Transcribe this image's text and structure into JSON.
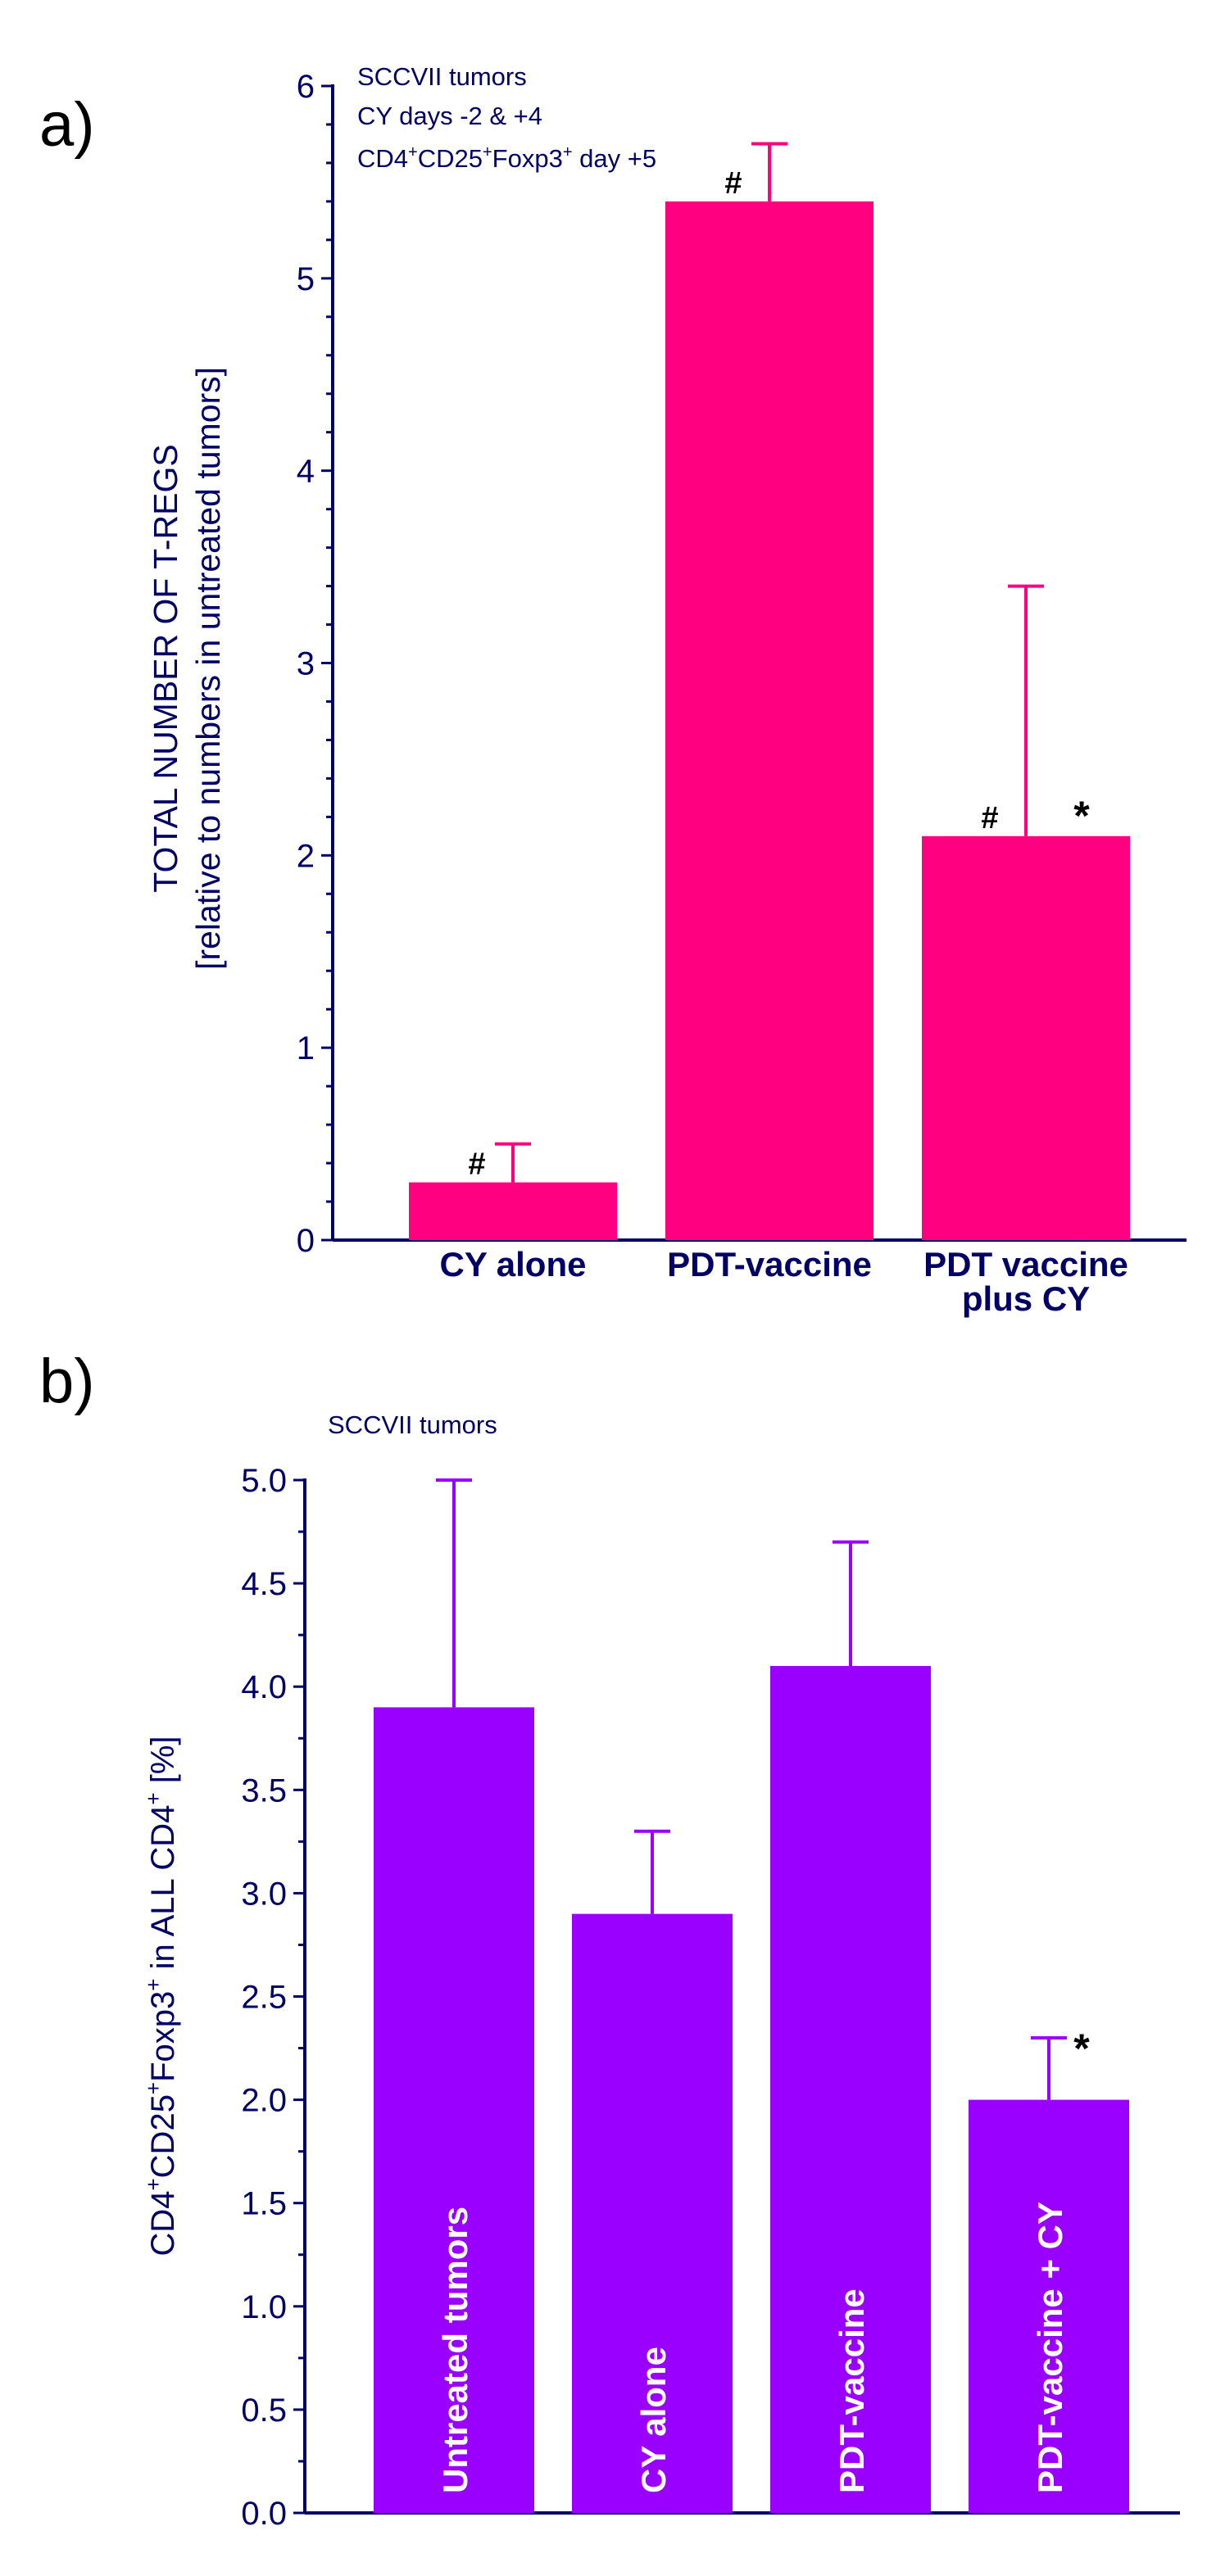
{
  "chart_data": [
    {
      "panel": "a)",
      "type": "bar",
      "categories": [
        [
          "CY alone"
        ],
        [
          "PDT-vaccine"
        ],
        [
          "PDT vaccine",
          "plus CY"
        ]
      ],
      "values": [
        0.3,
        5.4,
        2.1
      ],
      "error_plus": [
        0.2,
        0.3,
        1.3
      ],
      "markers": [
        [
          "#"
        ],
        [
          "#"
        ],
        [
          "#",
          "*"
        ]
      ],
      "ylabel": [
        "TOTAL NUMBER OF T-REGS",
        "[relative to numbers in untreated tumors]"
      ],
      "ylim": [
        0,
        6
      ],
      "yticks": [
        0,
        1,
        2,
        3,
        4,
        5,
        6
      ],
      "ytick_labels": [
        "0",
        "1",
        "2",
        "3",
        "4",
        "5",
        "6"
      ],
      "annotation": {
        "line1": "SCCVII tumors",
        "line2": "CY days -2 & +4",
        "line3": {
          "a": "CD4",
          "b": "+",
          "c": "CD25",
          "d": "+",
          "e": "Foxp3",
          "f": "+",
          "g": " day +5"
        }
      },
      "bar_color": "#FF0080"
    },
    {
      "panel": "b)",
      "type": "bar",
      "categories": [
        "Untreated tumors",
        "CY alone",
        "PDT-vaccine",
        "PDT-vaccine + CY"
      ],
      "values": [
        3.9,
        2.9,
        4.1,
        2.0
      ],
      "error_plus": [
        1.1,
        0.4,
        0.6,
        0.3
      ],
      "markers": [
        [],
        [],
        [],
        [
          "*"
        ]
      ],
      "ylabel": {
        "a": "CD4",
        "b": "+",
        "c": "CD25",
        "d": "+",
        "e": "Foxp3",
        "f": "+",
        "g": " in ALL CD4",
        "h": "+",
        "i": " [%]"
      },
      "ylim": [
        0,
        5
      ],
      "yticks": [
        0,
        0.5,
        1,
        1.5,
        2,
        2.5,
        3,
        3.5,
        4,
        4.5,
        5
      ],
      "ytick_labels": [
        "0.0",
        "0.5",
        "1.0",
        "1.5",
        "2.0",
        "2.5",
        "3.0",
        "3.5",
        "4.0",
        "4.5",
        "5.0"
      ],
      "annotation": "SCCVII tumors",
      "bar_color": "#9900FF"
    }
  ],
  "colors": {
    "axis": "#000066"
  }
}
